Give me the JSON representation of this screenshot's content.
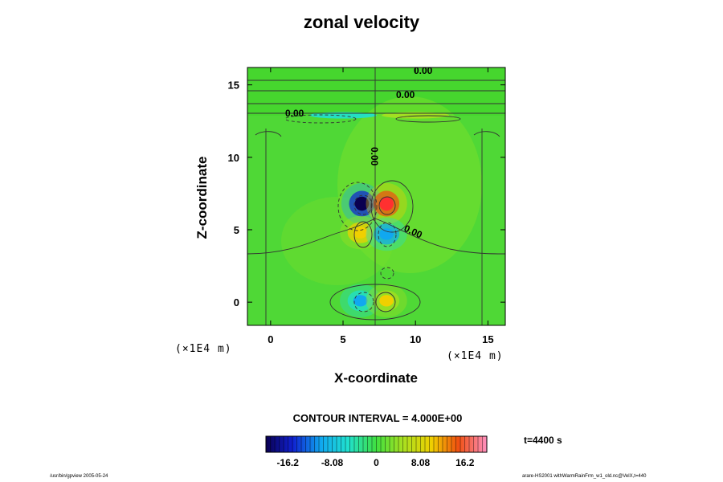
{
  "chart_data": {
    "type": "heatmap",
    "title": "zonal velocity",
    "xlabel": "X-coordinate",
    "ylabel": "Z-coordinate",
    "x_unit": "(×1E4 m)",
    "y_unit": "(×1E4 m)",
    "xlim": [
      -1.6,
      16.2
    ],
    "ylim": [
      -1.6,
      16.2
    ],
    "x_ticks": [
      "0",
      "5",
      "10",
      "15"
    ],
    "y_ticks": [
      "0",
      "5",
      "10",
      "15"
    ],
    "contour_interval_label": "CONTOUR INTERVAL = 4.000E+00",
    "contour_labels": [
      "0.00",
      "0.00",
      "0.00",
      "0.00",
      "0.00"
    ],
    "colorbar": {
      "min": -20.2,
      "max": 20.2,
      "tick_labels": [
        "-16.2",
        "-8.08",
        "0",
        "8.08",
        "16.2"
      ],
      "tick_values": [
        -16.2,
        -8.08,
        0,
        8.08,
        16.2
      ]
    },
    "features": [
      {
        "x": 6.3,
        "z": 6.8,
        "value": -20
      },
      {
        "x": 8.0,
        "z": 6.8,
        "value": 20
      },
      {
        "x": 6.2,
        "z": 4.8,
        "value": 9
      },
      {
        "x": 8.0,
        "z": 4.7,
        "value": -9
      },
      {
        "x": 6.2,
        "z": 0.1,
        "value": -6
      },
      {
        "x": 8.0,
        "z": 0.1,
        "value": 6
      },
      {
        "x": 5.0,
        "z": 12.9,
        "value": -3
      },
      {
        "x": 10.0,
        "z": 12.9,
        "value": 5
      }
    ]
  },
  "time_label": "t=4400 s",
  "footer_left": "/usr/bin/gpview 2005-05-24",
  "footer_right": "arare-HS2001 withWarmRainFrm_w1_old.nc@VelX,t=440"
}
